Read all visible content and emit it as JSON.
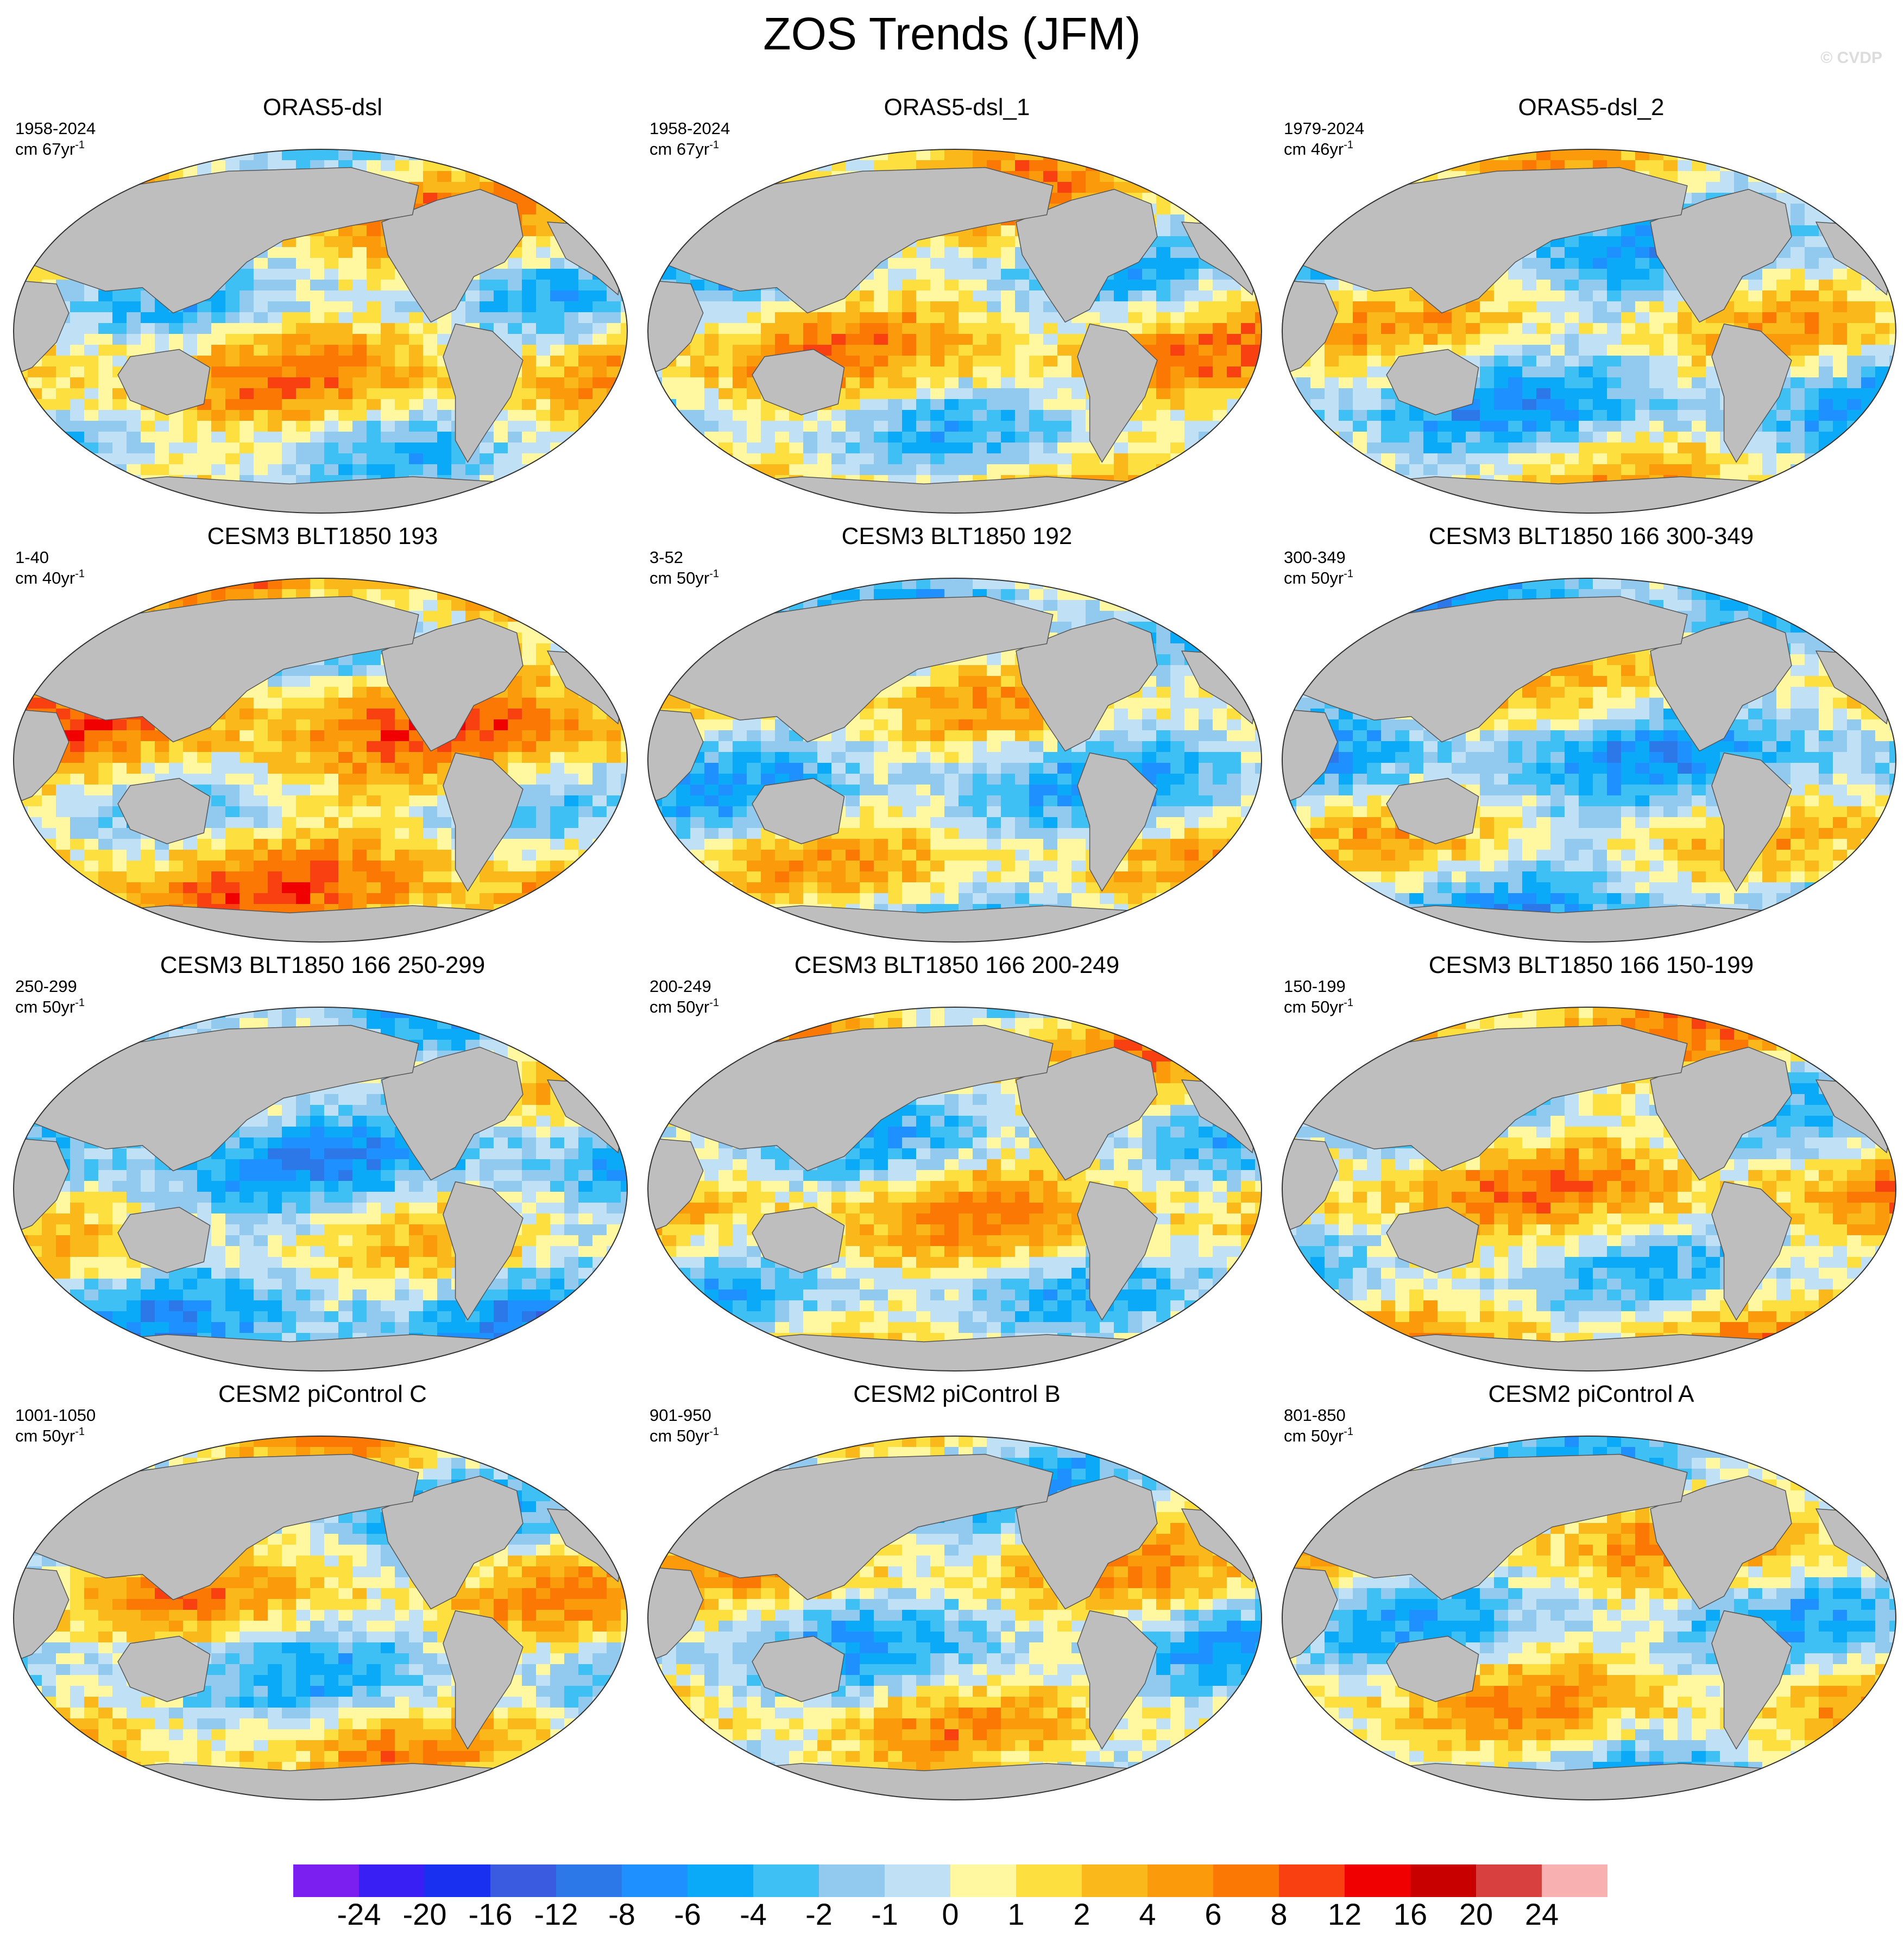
{
  "title": "ZOS Trends (JFM)",
  "watermark": "© CVDP",
  "colors": {
    "land": "#bebebe",
    "ocean_outline": "#333333",
    "antarctic_ice": "#ffffff"
  },
  "panels": [
    {
      "title": "ORAS5-dsl",
      "years": "1958-2024",
      "units_prefix": "cm 67yr",
      "units_sup": "-1"
    },
    {
      "title": "ORAS5-dsl_1",
      "years": "1958-2024",
      "units_prefix": "cm 67yr",
      "units_sup": "-1"
    },
    {
      "title": "ORAS5-dsl_2",
      "years": "1979-2024",
      "units_prefix": "cm 46yr",
      "units_sup": "-1"
    },
    {
      "title": "CESM3 BLT1850 193",
      "years": "1-40",
      "units_prefix": "cm 40yr",
      "units_sup": "-1"
    },
    {
      "title": "CESM3 BLT1850 192",
      "years": "3-52",
      "units_prefix": "cm 50yr",
      "units_sup": "-1"
    },
    {
      "title": "CESM3 BLT1850 166 300-349",
      "years": "300-349",
      "units_prefix": "cm 50yr",
      "units_sup": "-1"
    },
    {
      "title": "CESM3 BLT1850 166 250-299",
      "years": "250-299",
      "units_prefix": "cm 50yr",
      "units_sup": "-1"
    },
    {
      "title": "CESM3 BLT1850 166 200-249",
      "years": "200-249",
      "units_prefix": "cm 50yr",
      "units_sup": "-1"
    },
    {
      "title": "CESM3 BLT1850 166 150-199",
      "years": "150-199",
      "units_prefix": "cm 50yr",
      "units_sup": "-1"
    },
    {
      "title": "CESM2 piControl C",
      "years": "1001-1050",
      "units_prefix": "cm 50yr",
      "units_sup": "-1"
    },
    {
      "title": "CESM2 piControl B",
      "years": "901-950",
      "units_prefix": "cm 50yr",
      "units_sup": "-1"
    },
    {
      "title": "CESM2 piControl A",
      "years": "801-850",
      "units_prefix": "cm 50yr",
      "units_sup": "-1"
    }
  ],
  "colorbar": {
    "colors": [
      "#7a1ff0",
      "#3a1ff5",
      "#1a30f0",
      "#3a5ae0",
      "#2c78e8",
      "#1e90ff",
      "#0aaaf8",
      "#3ec0f5",
      "#92c9ee",
      "#bfe0f5",
      "#fff8a0",
      "#fde040",
      "#fbb81a",
      "#fb9a0a",
      "#fb7805",
      "#f94010",
      "#f00000",
      "#c80000",
      "#d84040",
      "#f9b0b0"
    ],
    "labels": [
      "-24",
      "-20",
      "-16",
      "-12",
      "-8",
      "-6",
      "-4",
      "-2",
      "-1",
      "0",
      "1",
      "2",
      "4",
      "6",
      "8",
      "12",
      "16",
      "20",
      "24"
    ]
  }
}
